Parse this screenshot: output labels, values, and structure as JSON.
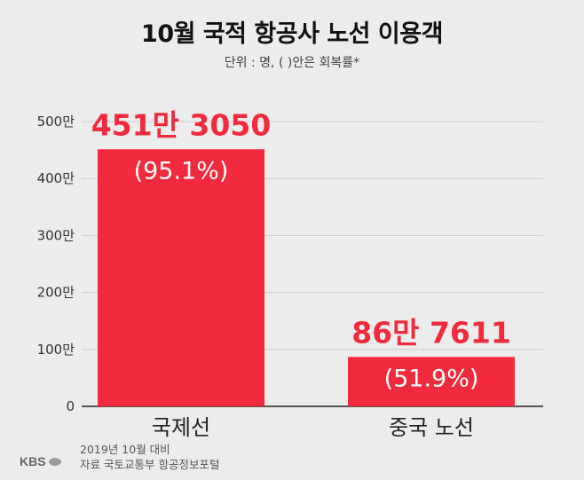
{
  "title": "10월 국적 항공사 노선 이용객",
  "subtitle": "단위 : 명, ( )안은 회복률*",
  "chart_data": {
    "type": "bar",
    "categories": [
      "국제선",
      "중국 노선"
    ],
    "values": [
      4513050,
      867611
    ],
    "value_labels": [
      "451만 3050",
      "86만 7611"
    ],
    "rate_labels": [
      "(95.1%)",
      "(51.9%)"
    ],
    "ylim": [
      0,
      5000000
    ],
    "yticks": [
      0,
      1000000,
      2000000,
      3000000,
      4000000,
      5000000
    ],
    "ytick_labels": [
      "0",
      "100만",
      "200만",
      "300만",
      "400만",
      "500만"
    ],
    "grid": true,
    "bar_color": "#f12a3d",
    "value_label_color": "#f12a3d",
    "rate_label_color": "#ffffff"
  },
  "source_lines": [
    "2019년 10월 대비",
    "자료 국토교통부 항공정보포털"
  ],
  "logo_text": "KBS"
}
